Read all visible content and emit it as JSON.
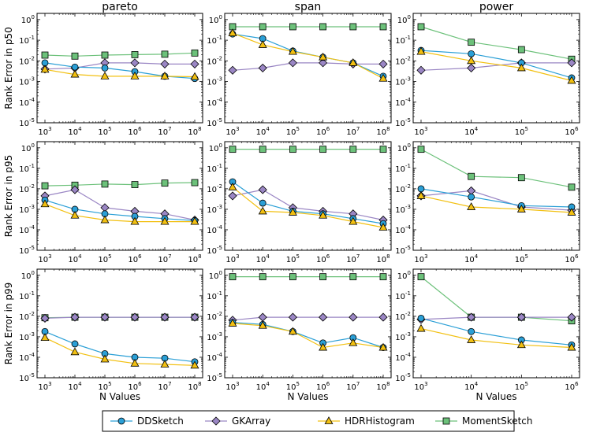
{
  "chart_data": {
    "type": "line",
    "yscale": "log",
    "xscale": "log",
    "ylim_exp": [
      -5,
      0.3
    ],
    "ytick_labels": [
      "10",
      "10",
      "10",
      "10",
      "10",
      "10"
    ],
    "ytick_exps": [
      "-5",
      "-4",
      "-3",
      "-2",
      "-1",
      "0"
    ],
    "xlabel": "N Values",
    "columns": [
      {
        "title": "pareto",
        "x_exps": [
          "3",
          "4",
          "5",
          "6",
          "7",
          "8"
        ]
      },
      {
        "title": "span",
        "x_exps": [
          "3",
          "4",
          "5",
          "6",
          "7",
          "8"
        ]
      },
      {
        "title": "power",
        "x_exps": [
          "3",
          "4",
          "5",
          "6"
        ]
      }
    ],
    "row_labels": [
      "Rank Error in p50",
      "Rank Error in p95",
      "Rank Error in p99"
    ],
    "series_meta": [
      {
        "name": "DDSketch",
        "color": "#2a9fd6",
        "marker": "circle"
      },
      {
        "name": "GKArray",
        "color": "#9a86c4",
        "marker": "diamond"
      },
      {
        "name": "HDRHistogram",
        "color": "#f2c011",
        "marker": "triangle"
      },
      {
        "name": "MomentSketch",
        "color": "#6cc17a",
        "marker": "square"
      }
    ],
    "panels": [
      {
        "row": 0,
        "col": 0,
        "x": [
          1000,
          10000,
          100000,
          1000000,
          10000000,
          100000000
        ],
        "series": {
          "DDSketch": [
            0.008,
            0.005,
            0.0045,
            0.003,
            0.0018,
            0.0014
          ],
          "GKArray": [
            0.004,
            0.0045,
            0.008,
            0.008,
            0.007,
            0.007
          ],
          "HDRHistogram": [
            0.0038,
            0.0022,
            0.0018,
            0.0018,
            0.0018,
            0.0017
          ],
          "MomentSketch": [
            0.019,
            0.017,
            0.019,
            0.02,
            0.021,
            0.024
          ]
        }
      },
      {
        "row": 0,
        "col": 1,
        "x": [
          1000,
          10000,
          100000,
          1000000,
          10000000,
          100000000
        ],
        "series": {
          "DDSketch": [
            0.2,
            0.12,
            0.03,
            0.015,
            0.008,
            0.0018
          ],
          "GKArray": [
            0.0035,
            0.0045,
            0.008,
            0.008,
            0.007,
            0.007
          ],
          "HDRHistogram": [
            0.22,
            0.06,
            0.028,
            0.015,
            0.008,
            0.0014
          ],
          "MomentSketch": [
            0.45,
            0.45,
            0.45,
            0.45,
            0.45,
            0.45
          ]
        }
      },
      {
        "row": 0,
        "col": 2,
        "x": [
          1000,
          10000,
          100000,
          1000000
        ],
        "series": {
          "DDSketch": [
            0.032,
            0.022,
            0.008,
            0.0015
          ],
          "GKArray": [
            0.0035,
            0.0045,
            0.008,
            0.008
          ],
          "HDRHistogram": [
            0.028,
            0.01,
            0.0045,
            0.0011
          ],
          "MomentSketch": [
            0.45,
            0.08,
            0.035,
            0.012
          ]
        }
      },
      {
        "row": 1,
        "col": 0,
        "x": [
          1000,
          10000,
          100000,
          1000000,
          10000000,
          100000000
        ],
        "series": {
          "DDSketch": [
            0.0028,
            0.001,
            0.0006,
            0.00045,
            0.00035,
            0.00028
          ],
          "GKArray": [
            0.0045,
            0.009,
            0.0012,
            0.0008,
            0.0006,
            0.0003
          ],
          "HDRHistogram": [
            0.0018,
            0.0005,
            0.0003,
            0.00025,
            0.00025,
            0.00025
          ],
          "MomentSketch": [
            0.014,
            0.015,
            0.017,
            0.016,
            0.019,
            0.02
          ]
        }
      },
      {
        "row": 1,
        "col": 1,
        "x": [
          1000,
          10000,
          100000,
          1000000,
          10000000,
          100000000
        ],
        "series": {
          "DDSketch": [
            0.022,
            0.002,
            0.0008,
            0.0006,
            0.00035,
            0.0002
          ],
          "GKArray": [
            0.0045,
            0.009,
            0.0012,
            0.0008,
            0.0006,
            0.0003
          ],
          "HDRHistogram": [
            0.012,
            0.0008,
            0.0007,
            0.0005,
            0.00025,
            0.00013
          ],
          "MomentSketch": [
            0.85,
            0.85,
            0.85,
            0.85,
            0.85,
            0.85
          ]
        }
      },
      {
        "row": 1,
        "col": 2,
        "x": [
          1000,
          10000,
          100000,
          1000000
        ],
        "series": {
          "DDSketch": [
            0.01,
            0.004,
            0.0015,
            0.0013
          ],
          "GKArray": [
            0.0045,
            0.008,
            0.0013,
            0.0009
          ],
          "HDRHistogram": [
            0.0045,
            0.0013,
            0.001,
            0.0007
          ],
          "MomentSketch": [
            0.85,
            0.04,
            0.035,
            0.012
          ]
        }
      },
      {
        "row": 2,
        "col": 0,
        "x": [
          1000,
          10000,
          100000,
          1000000,
          10000000,
          100000000
        ],
        "series": {
          "DDSketch": [
            0.0018,
            0.00045,
            0.00015,
            0.0001,
            9e-05,
            6e-05
          ],
          "GKArray": [
            0.008,
            0.009,
            0.009,
            0.009,
            0.009,
            0.009
          ],
          "HDRHistogram": [
            0.0009,
            0.00018,
            8e-05,
            5e-05,
            4.5e-05,
            4e-05
          ],
          "MomentSketch": [
            0.0085,
            0.009,
            0.009,
            0.009,
            0.009,
            0.009
          ]
        }
      },
      {
        "row": 2,
        "col": 1,
        "x": [
          1000,
          10000,
          100000,
          1000000,
          10000000,
          100000000
        ],
        "series": {
          "DDSketch": [
            0.005,
            0.004,
            0.0018,
            0.0005,
            0.0009,
            0.0003
          ],
          "GKArray": [
            0.0065,
            0.009,
            0.009,
            0.009,
            0.009,
            0.009
          ],
          "HDRHistogram": [
            0.0045,
            0.0035,
            0.0018,
            0.0003,
            0.0005,
            0.0003
          ],
          "MomentSketch": [
            0.85,
            0.85,
            0.85,
            0.85,
            0.85,
            0.85
          ]
        }
      },
      {
        "row": 2,
        "col": 2,
        "x": [
          1000,
          10000,
          100000,
          1000000
        ],
        "series": {
          "DDSketch": [
            0.008,
            0.0018,
            0.0007,
            0.0004
          ],
          "GKArray": [
            0.007,
            0.009,
            0.009,
            0.009
          ],
          "HDRHistogram": [
            0.0025,
            0.0007,
            0.0004,
            0.0003
          ],
          "MomentSketch": [
            0.85,
            0.009,
            0.009,
            0.006
          ]
        }
      }
    ],
    "legend": [
      "DDSketch",
      "GKArray",
      "HDRHistogram",
      "MomentSketch"
    ]
  }
}
